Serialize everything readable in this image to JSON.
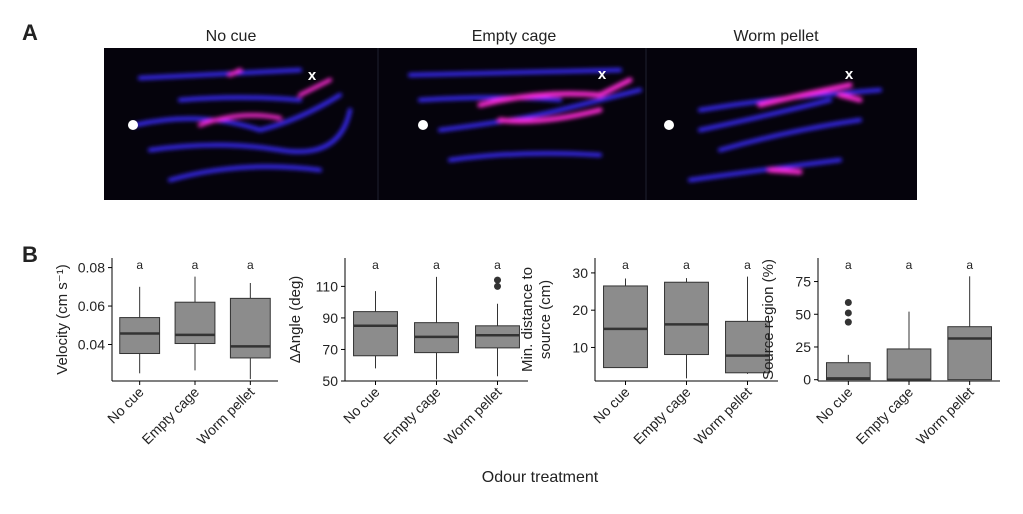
{
  "panel_a": {
    "label": "A",
    "titles": [
      "No cue",
      "Empty cage",
      "Worm pellet"
    ],
    "markers": [
      "x",
      "x",
      "x"
    ]
  },
  "panel_b_label": "B",
  "x_label": "Odour treatment",
  "chart_data": [
    {
      "type": "box",
      "y_label": [
        "Velocity (cm s⁻¹)"
      ],
      "categories": [
        "No cue",
        "Empty cage",
        "Worm pellet"
      ],
      "annotations": [
        "a",
        "a",
        "a"
      ],
      "color": "#8c8c8c",
      "ylim": [
        0.021,
        0.085
      ],
      "yticks": [
        0.04,
        0.06,
        0.08
      ],
      "boxes": [
        {
          "low": 0.025,
          "q1": 0.0353,
          "median": 0.0457,
          "q3": 0.054,
          "high": 0.07,
          "outliers": []
        },
        {
          "low": 0.0265,
          "q1": 0.0405,
          "median": 0.045,
          "q3": 0.062,
          "high": 0.0753,
          "outliers": []
        },
        {
          "low": 0.022,
          "q1": 0.033,
          "median": 0.039,
          "q3": 0.064,
          "high": 0.072,
          "outliers": []
        }
      ]
    },
    {
      "type": "box",
      "y_label": [
        "ΔAngle (deg)"
      ],
      "categories": [
        "No cue",
        "Empty cage",
        "Worm pellet"
      ],
      "annotations": [
        "a",
        "a",
        "a"
      ],
      "color": "#8c8c8c",
      "ylim": [
        50,
        128
      ],
      "yticks": [
        50,
        70,
        90,
        110
      ],
      "boxes": [
        {
          "low": 58,
          "q1": 66,
          "median": 85,
          "q3": 94,
          "high": 107,
          "outliers": []
        },
        {
          "low": 51,
          "q1": 68,
          "median": 78,
          "q3": 87,
          "high": 116,
          "outliers": []
        },
        {
          "low": 53,
          "q1": 71,
          "median": 79,
          "q3": 85,
          "high": 99,
          "outliers": [
            114,
            110
          ]
        }
      ]
    },
    {
      "type": "box",
      "y_label": [
        "Min. distance to",
        "source (cm)"
      ],
      "categories": [
        "No cue",
        "Empty cage",
        "Worm pellet"
      ],
      "annotations": [
        "a",
        "a",
        "a"
      ],
      "color": "#8c8c8c",
      "ylim": [
        1,
        34
      ],
      "yticks": [
        10,
        20,
        30
      ],
      "boxes": [
        {
          "low": 4.6,
          "q1": 4.6,
          "median": 15,
          "q3": 26.5,
          "high": 28.5,
          "outliers": []
        },
        {
          "low": 1.7,
          "q1": 8.1,
          "median": 16.2,
          "q3": 27.5,
          "high": 28.6,
          "outliers": []
        },
        {
          "low": 2.9,
          "q1": 3.2,
          "median": 7.8,
          "q3": 17,
          "high": 29,
          "outliers": []
        }
      ]
    },
    {
      "type": "box",
      "y_label": [
        "Source region (%)"
      ],
      "categories": [
        "No cue",
        "Empty cage",
        "Worm pellet"
      ],
      "annotations": [
        "a",
        "a",
        "a"
      ],
      "color": "#8c8c8c",
      "ylim": [
        -1,
        93
      ],
      "yticks": [
        0,
        25,
        50,
        75
      ],
      "boxes": [
        {
          "low": 0,
          "q1": 0,
          "median": 1,
          "q3": 13,
          "high": 19,
          "outliers": [
            59,
            51,
            44
          ]
        },
        {
          "low": 0,
          "q1": 0,
          "median": 0,
          "q3": 23.5,
          "high": 52,
          "outliers": []
        },
        {
          "low": 0,
          "q1": 0,
          "median": 31.5,
          "q3": 40.5,
          "high": 79,
          "outliers": []
        }
      ]
    }
  ]
}
